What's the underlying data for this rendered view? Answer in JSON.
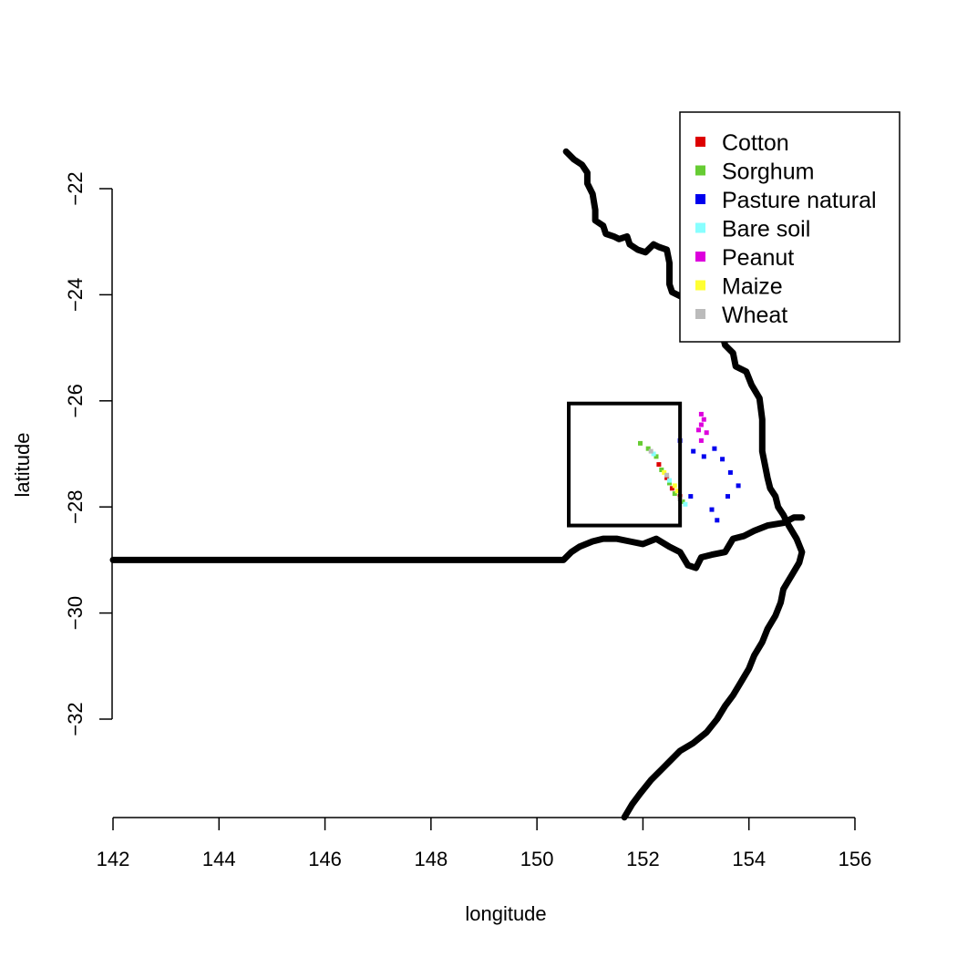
{
  "chart_data": {
    "type": "map",
    "xlabel": "longitude",
    "ylabel": "latitude",
    "xlim": [
      142,
      156
    ],
    "ylim": [
      -33.85,
      -21.3
    ],
    "x_ticks": [
      {
        "value": 142,
        "label": "142"
      },
      {
        "value": 144,
        "label": "144"
      },
      {
        "value": 146,
        "label": "146"
      },
      {
        "value": 148,
        "label": "148"
      },
      {
        "value": 150,
        "label": "150"
      },
      {
        "value": 152,
        "label": "152"
      },
      {
        "value": 154,
        "label": "154"
      },
      {
        "value": 156,
        "label": "156"
      }
    ],
    "y_ticks": [
      {
        "value": -22,
        "label": "−22"
      },
      {
        "value": -24,
        "label": "−24"
      },
      {
        "value": -26,
        "label": "−26"
      },
      {
        "value": -28,
        "label": "−28"
      },
      {
        "value": -30,
        "label": "−30"
      },
      {
        "value": -32,
        "label": "−32"
      }
    ],
    "x_axis_extent": [
      142,
      156
    ],
    "y_axis_extent": [
      -32,
      -22
    ],
    "legend": {
      "position": "top-right",
      "entries": [
        {
          "label": "Cotton",
          "color": "#dd0000"
        },
        {
          "label": "Sorghum",
          "color": "#66cc33"
        },
        {
          "label": "Pasture natural",
          "color": "#0000ee"
        },
        {
          "label": "Bare soil",
          "color": "#88ffff"
        },
        {
          "label": "Peanut",
          "color": "#dd00dd"
        },
        {
          "label": "Maize",
          "color": "#ffff33"
        },
        {
          "label": "Wheat",
          "color": "#bbbbbb"
        }
      ]
    },
    "study_box": {
      "lon": [
        150.6,
        152.7
      ],
      "lat": [
        -28.35,
        -26.05
      ]
    },
    "boundary_lines": [
      {
        "name": "coastline",
        "points": [
          [
            150.55,
            -21.3
          ],
          [
            150.7,
            -21.45
          ],
          [
            150.85,
            -21.55
          ],
          [
            150.95,
            -21.7
          ],
          [
            150.95,
            -21.9
          ],
          [
            151.05,
            -22.1
          ],
          [
            151.1,
            -22.4
          ],
          [
            151.1,
            -22.6
          ],
          [
            151.25,
            -22.7
          ],
          [
            151.3,
            -22.85
          ],
          [
            151.45,
            -22.9
          ],
          [
            151.55,
            -22.95
          ],
          [
            151.7,
            -22.9
          ],
          [
            151.75,
            -23.05
          ],
          [
            151.9,
            -23.15
          ],
          [
            152.05,
            -23.2
          ],
          [
            152.2,
            -23.05
          ],
          [
            152.3,
            -23.1
          ],
          [
            152.45,
            -23.15
          ],
          [
            152.5,
            -23.4
          ],
          [
            152.5,
            -23.8
          ],
          [
            152.55,
            -23.95
          ],
          [
            152.75,
            -24.05
          ],
          [
            153.05,
            -24.05
          ],
          [
            153.2,
            -24.25
          ],
          [
            153.3,
            -24.4
          ],
          [
            153.45,
            -24.55
          ],
          [
            153.5,
            -24.75
          ],
          [
            153.55,
            -24.95
          ],
          [
            153.7,
            -25.1
          ],
          [
            153.75,
            -25.35
          ],
          [
            153.95,
            -25.45
          ],
          [
            154.05,
            -25.7
          ],
          [
            154.2,
            -25.95
          ],
          [
            154.25,
            -26.35
          ],
          [
            154.25,
            -26.65
          ],
          [
            154.25,
            -26.95
          ],
          [
            154.3,
            -27.2
          ],
          [
            154.35,
            -27.45
          ],
          [
            154.4,
            -27.65
          ],
          [
            154.5,
            -27.8
          ],
          [
            154.55,
            -28.0
          ],
          [
            154.65,
            -28.15
          ],
          [
            154.75,
            -28.35
          ],
          [
            154.9,
            -28.6
          ],
          [
            155.0,
            -28.85
          ],
          [
            154.95,
            -29.05
          ],
          [
            154.8,
            -29.3
          ],
          [
            154.65,
            -29.55
          ],
          [
            154.6,
            -29.8
          ],
          [
            154.5,
            -30.05
          ],
          [
            154.35,
            -30.3
          ],
          [
            154.25,
            -30.55
          ],
          [
            154.1,
            -30.8
          ],
          [
            154.0,
            -31.05
          ],
          [
            153.85,
            -31.3
          ],
          [
            153.7,
            -31.55
          ],
          [
            153.55,
            -31.75
          ],
          [
            153.4,
            -32.0
          ],
          [
            153.2,
            -32.25
          ],
          [
            152.95,
            -32.45
          ],
          [
            152.7,
            -32.6
          ],
          [
            152.55,
            -32.75
          ],
          [
            152.35,
            -32.95
          ],
          [
            152.15,
            -33.15
          ],
          [
            151.95,
            -33.4
          ],
          [
            151.8,
            -33.6
          ],
          [
            151.65,
            -33.85
          ]
        ]
      },
      {
        "name": "state-border",
        "points": [
          [
            142.0,
            -29.0
          ],
          [
            144.0,
            -29.0
          ],
          [
            146.0,
            -29.0
          ],
          [
            148.0,
            -29.0
          ],
          [
            150.5,
            -29.0
          ],
          [
            150.65,
            -28.85
          ],
          [
            150.8,
            -28.75
          ],
          [
            151.05,
            -28.65
          ],
          [
            151.25,
            -28.6
          ],
          [
            151.5,
            -28.6
          ],
          [
            151.75,
            -28.65
          ],
          [
            152.0,
            -28.7
          ],
          [
            152.25,
            -28.6
          ],
          [
            152.5,
            -28.75
          ],
          [
            152.7,
            -28.85
          ],
          [
            152.85,
            -29.1
          ],
          [
            153.0,
            -29.15
          ],
          [
            153.1,
            -28.95
          ],
          [
            153.3,
            -28.9
          ],
          [
            153.55,
            -28.85
          ],
          [
            153.7,
            -28.6
          ],
          [
            153.9,
            -28.55
          ],
          [
            154.1,
            -28.45
          ],
          [
            154.35,
            -28.35
          ],
          [
            154.65,
            -28.3
          ],
          [
            154.85,
            -28.2
          ],
          [
            155.0,
            -28.2
          ]
        ]
      }
    ],
    "land_use_points": [
      {
        "class": "Peanut",
        "lat_lon": [
          [
            153.1,
            -26.25
          ],
          [
            153.15,
            -26.35
          ],
          [
            153.1,
            -26.45
          ],
          [
            153.05,
            -26.55
          ],
          [
            153.2,
            -26.6
          ],
          [
            153.1,
            -26.75
          ]
        ]
      },
      {
        "class": "Pasture natural",
        "lat_lon": [
          [
            152.7,
            -26.75
          ],
          [
            152.95,
            -26.95
          ],
          [
            153.15,
            -27.05
          ],
          [
            153.35,
            -26.9
          ],
          [
            153.5,
            -27.1
          ],
          [
            153.65,
            -27.35
          ],
          [
            153.8,
            -27.6
          ],
          [
            153.6,
            -27.8
          ],
          [
            153.3,
            -28.05
          ],
          [
            153.4,
            -28.25
          ],
          [
            152.9,
            -27.8
          ]
        ]
      },
      {
        "class": "Sorghum",
        "lat_lon": [
          [
            151.95,
            -26.8
          ],
          [
            152.1,
            -26.9
          ],
          [
            152.25,
            -27.05
          ],
          [
            152.35,
            -27.3
          ],
          [
            152.5,
            -27.55
          ],
          [
            152.6,
            -27.75
          ],
          [
            152.75,
            -27.9
          ]
        ]
      },
      {
        "class": "Cotton",
        "lat_lon": [
          [
            152.3,
            -27.2
          ],
          [
            152.45,
            -27.45
          ],
          [
            152.55,
            -27.65
          ],
          [
            152.7,
            -27.8
          ]
        ]
      },
      {
        "class": "Maize",
        "lat_lon": [
          [
            152.4,
            -27.35
          ],
          [
            152.6,
            -27.6
          ],
          [
            152.65,
            -27.7
          ]
        ]
      },
      {
        "class": "Bare soil",
        "lat_lon": [
          [
            152.2,
            -27.0
          ],
          [
            152.5,
            -27.5
          ],
          [
            152.8,
            -27.95
          ]
        ]
      },
      {
        "class": "Wheat",
        "lat_lon": [
          [
            152.15,
            -26.95
          ],
          [
            152.45,
            -27.4
          ],
          [
            152.7,
            -27.85
          ]
        ]
      }
    ]
  }
}
